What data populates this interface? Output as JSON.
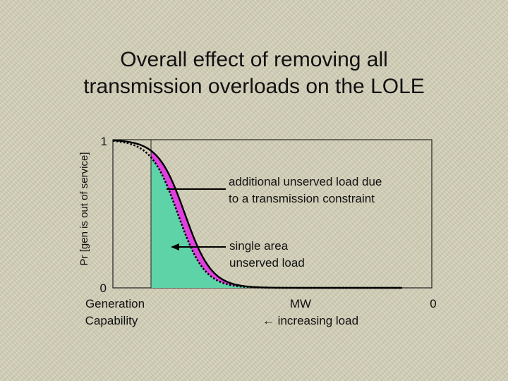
{
  "title": {
    "line1": "Overall effect of removing all",
    "line2": "transmission overloads on the LOLE"
  },
  "chart_data": {
    "type": "area",
    "ylabel": "Pr [gen is out of service]",
    "y_ticks": [
      "1",
      "0"
    ],
    "x_left_label": [
      "Generation",
      "Capability"
    ],
    "x_center_label": [
      "MW",
      "← increasing load"
    ],
    "x_right_label": "0",
    "ylim": [
      0,
      1
    ],
    "series": [
      {
        "name": "additional unserved load due to a transmission constraint",
        "color": "#e040e0"
      },
      {
        "name": "single area unserved load",
        "color": "#5fd3a8"
      }
    ],
    "annotations": [
      {
        "lines": [
          "additional unserved load due",
          "to a transmission constraint"
        ]
      },
      {
        "lines": [
          "single area",
          "unserved load"
        ]
      }
    ],
    "grid": false
  }
}
